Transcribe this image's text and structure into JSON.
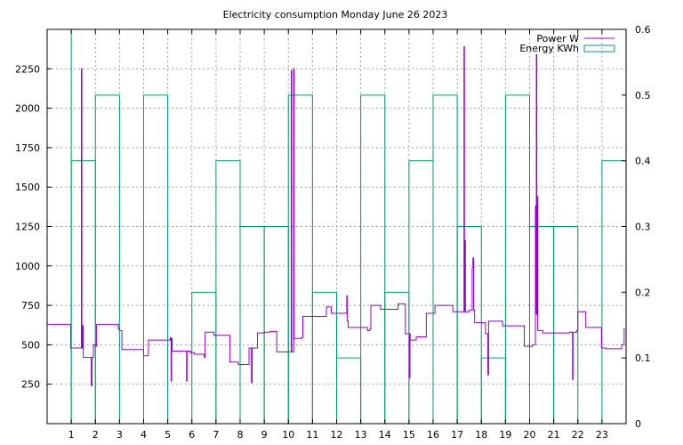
{
  "chart_data": {
    "type": "line",
    "title": "Electricity consumption Monday June 26 2023",
    "x_ticks": [
      "1",
      "2",
      "3",
      "4",
      "5",
      "6",
      "7",
      "8",
      "9",
      "10",
      "11",
      "12",
      "13",
      "14",
      "15",
      "16",
      "17",
      "18",
      "19",
      "20",
      "21",
      "22",
      "23"
    ],
    "y_ticks_left": [
      "250",
      "500",
      "750",
      "1000",
      "1250",
      "1500",
      "1750",
      "2000",
      "2250"
    ],
    "y_ticks_right": [
      "0",
      "0.1",
      "0.2",
      "0.3",
      "0.4",
      "0.5",
      "0.6"
    ],
    "xlim": [
      0,
      24
    ],
    "ylim_left": [
      0,
      2500
    ],
    "ylim_right": [
      0,
      0.6
    ],
    "grid": true,
    "legend_position": "top-right",
    "colors": {
      "power": "#9400d3",
      "energy": "#009e73"
    },
    "series": [
      {
        "name": "Power W",
        "axis": "left",
        "style": "steps",
        "points": [
          [
            0.0,
            630
          ],
          [
            0.95,
            630
          ],
          [
            0.98,
            480
          ],
          [
            1.4,
            480
          ],
          [
            1.42,
            2250
          ],
          [
            1.44,
            480
          ],
          [
            1.47,
            620
          ],
          [
            1.5,
            420
          ],
          [
            1.8,
            420
          ],
          [
            1.83,
            240
          ],
          [
            1.86,
            420
          ],
          [
            1.92,
            500
          ],
          [
            2.0,
            490
          ],
          [
            2.05,
            630
          ],
          [
            2.9,
            630
          ],
          [
            2.95,
            600
          ],
          [
            3.0,
            590
          ],
          [
            3.1,
            470
          ],
          [
            3.95,
            470
          ],
          [
            4.0,
            430
          ],
          [
            4.15,
            430
          ],
          [
            4.2,
            530
          ],
          [
            5.05,
            530
          ],
          [
            5.1,
            545
          ],
          [
            5.12,
            540
          ],
          [
            5.14,
            270
          ],
          [
            5.16,
            540
          ],
          [
            5.18,
            460
          ],
          [
            5.75,
            460
          ],
          [
            5.78,
            270
          ],
          [
            5.8,
            460
          ],
          [
            5.95,
            450
          ],
          [
            6.1,
            440
          ],
          [
            6.5,
            435
          ],
          [
            6.52,
            420
          ],
          [
            6.55,
            580
          ],
          [
            6.9,
            580
          ],
          [
            6.92,
            560
          ],
          [
            7.55,
            560
          ],
          [
            7.58,
            390
          ],
          [
            7.9,
            390
          ],
          [
            7.92,
            375
          ],
          [
            8.35,
            375
          ],
          [
            8.37,
            480
          ],
          [
            8.45,
            480
          ],
          [
            8.47,
            260
          ],
          [
            8.5,
            480
          ],
          [
            8.7,
            480
          ],
          [
            8.72,
            575
          ],
          [
            9.0,
            580
          ],
          [
            9.25,
            585
          ],
          [
            9.5,
            585
          ],
          [
            9.52,
            455
          ],
          [
            10.1,
            455
          ],
          [
            10.12,
            2240
          ],
          [
            10.14,
            455
          ],
          [
            10.2,
            455
          ],
          [
            10.22,
            2250
          ],
          [
            10.24,
            540
          ],
          [
            10.55,
            545
          ],
          [
            10.6,
            680
          ],
          [
            11.55,
            680
          ],
          [
            11.58,
            740
          ],
          [
            11.75,
            740
          ],
          [
            11.78,
            700
          ],
          [
            12.4,
            700
          ],
          [
            12.42,
            810
          ],
          [
            12.44,
            650
          ],
          [
            12.48,
            610
          ],
          [
            13.25,
            610
          ],
          [
            13.28,
            590
          ],
          [
            13.38,
            600
          ],
          [
            13.42,
            750
          ],
          [
            13.8,
            750
          ],
          [
            13.82,
            725
          ],
          [
            14.52,
            725
          ],
          [
            14.55,
            760
          ],
          [
            14.82,
            760
          ],
          [
            14.85,
            570
          ],
          [
            15.0,
            570
          ],
          [
            15.02,
            290
          ],
          [
            15.04,
            570
          ],
          [
            15.05,
            530
          ],
          [
            15.3,
            550
          ],
          [
            15.7,
            550
          ],
          [
            15.72,
            700
          ],
          [
            16.05,
            700
          ],
          [
            16.08,
            750
          ],
          [
            16.8,
            750
          ],
          [
            16.82,
            710
          ],
          [
            17.25,
            710
          ],
          [
            17.28,
            2390
          ],
          [
            17.3,
            710
          ],
          [
            17.32,
            1160
          ],
          [
            17.34,
            710
          ],
          [
            17.48,
            710
          ],
          [
            17.5,
            720
          ],
          [
            17.62,
            990
          ],
          [
            17.65,
            1050
          ],
          [
            17.68,
            720
          ],
          [
            17.72,
            640
          ],
          [
            18.15,
            640
          ],
          [
            18.17,
            570
          ],
          [
            18.25,
            570
          ],
          [
            18.27,
            310
          ],
          [
            18.3,
            650
          ],
          [
            18.85,
            650
          ],
          [
            18.88,
            620
          ],
          [
            19.75,
            620
          ],
          [
            19.78,
            490
          ],
          [
            20.1,
            490
          ],
          [
            20.12,
            500
          ],
          [
            20.22,
            500
          ],
          [
            20.24,
            1380
          ],
          [
            20.26,
            700
          ],
          [
            20.28,
            2340
          ],
          [
            20.3,
            690
          ],
          [
            20.32,
            1440
          ],
          [
            20.34,
            590
          ],
          [
            20.55,
            575
          ],
          [
            21.45,
            575
          ],
          [
            21.5,
            575
          ],
          [
            21.65,
            580
          ],
          [
            21.75,
            580
          ],
          [
            21.78,
            280
          ],
          [
            21.8,
            580
          ],
          [
            21.95,
            590
          ],
          [
            22.0,
            710
          ],
          [
            22.3,
            710
          ],
          [
            22.33,
            610
          ],
          [
            22.95,
            610
          ],
          [
            22.98,
            480
          ],
          [
            23.0,
            480
          ],
          [
            23.15,
            475
          ],
          [
            23.8,
            475
          ],
          [
            23.82,
            500
          ],
          [
            23.9,
            500
          ],
          [
            23.92,
            600
          ],
          [
            23.95,
            600
          ]
        ]
      },
      {
        "name": "Energy KWh",
        "axis": "right",
        "style": "boxes",
        "values": [
          0.6,
          0.4,
          0.5,
          0,
          0.5,
          0,
          0.2,
          0.4,
          0.3,
          0.3,
          0.5,
          0.2,
          0.1,
          0.5,
          0.2,
          0.4,
          0.5,
          0.3,
          0.1,
          0.5,
          0.3,
          0.3,
          0,
          0.4
        ]
      }
    ]
  }
}
